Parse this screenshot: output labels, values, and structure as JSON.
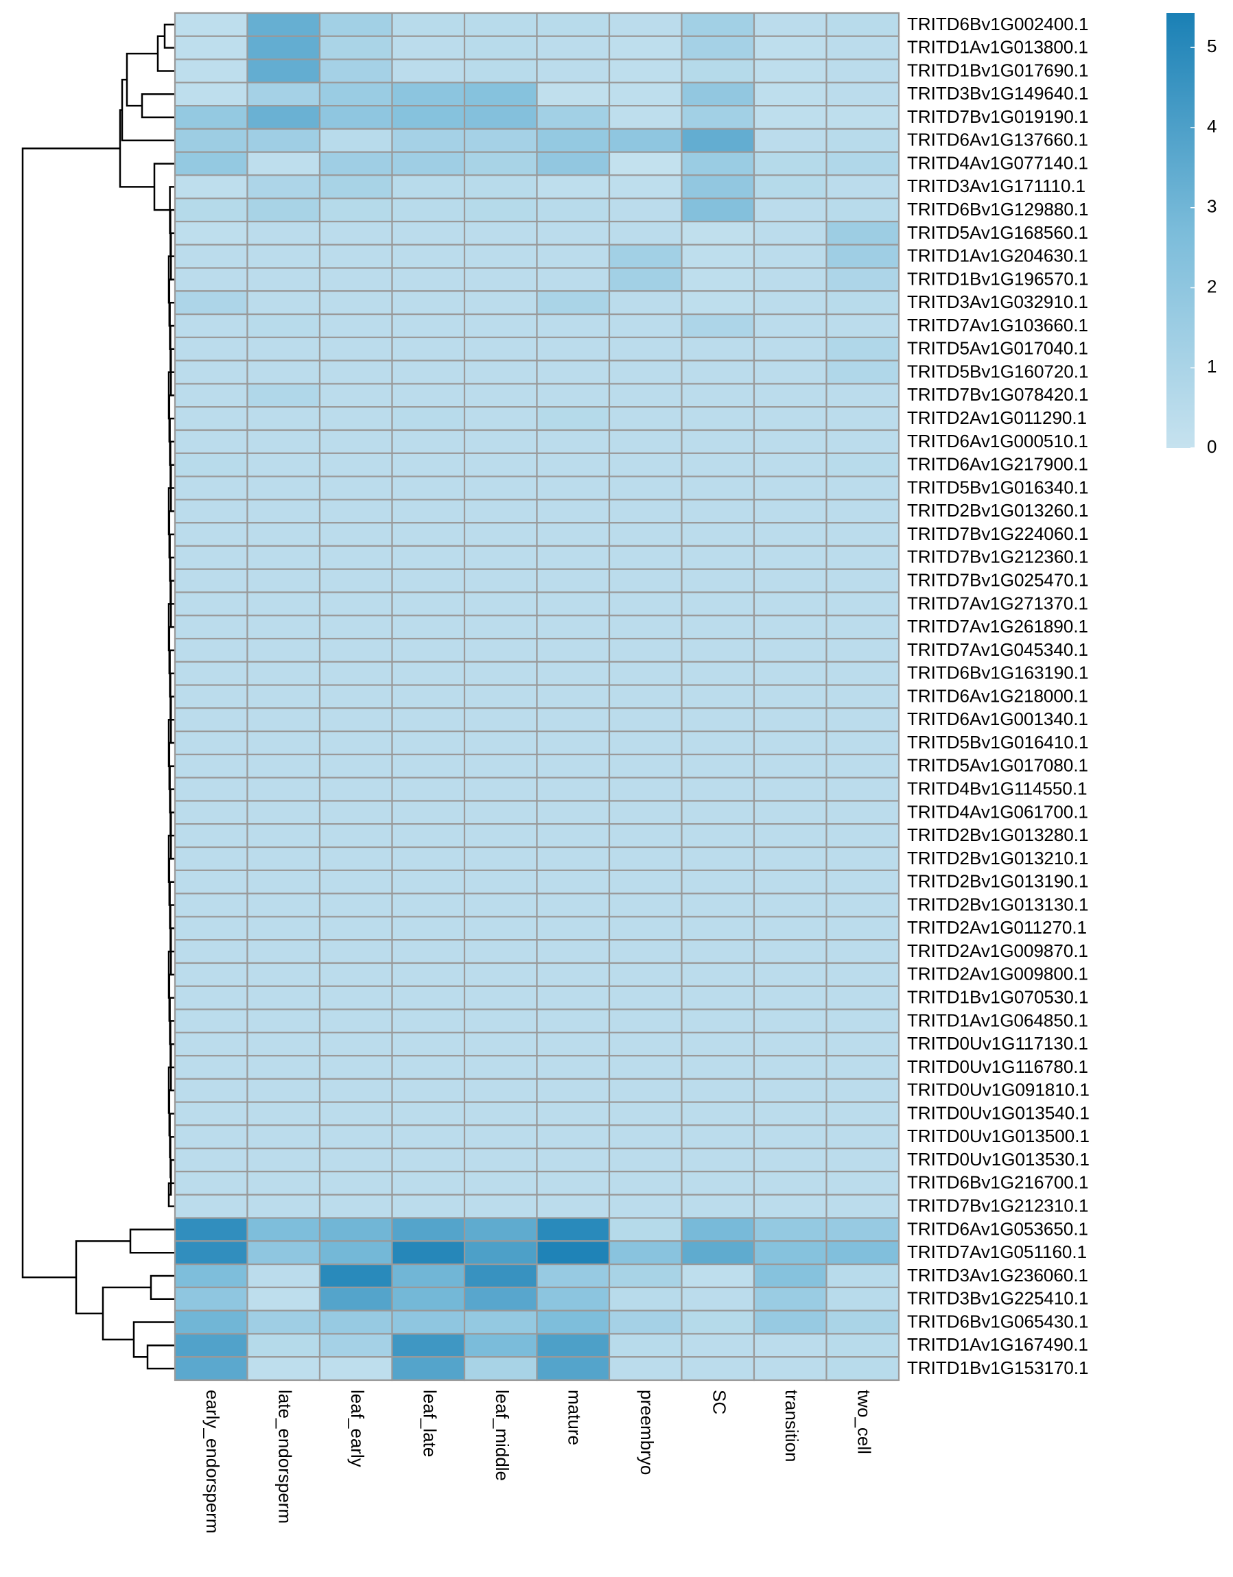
{
  "chart_data": {
    "type": "heatmap",
    "x": [
      "early_endorsperm",
      "late_endorsperm",
      "leaf_early",
      "leaf_late",
      "leaf_middle",
      "mature",
      "preembryo",
      "SC",
      "transition",
      "two_cell"
    ],
    "y": [
      "TRITD6Bv1G002400.1",
      "TRITD1Av1G013800.1",
      "TRITD1Bv1G017690.1",
      "TRITD3Bv1G149640.1",
      "TRITD7Bv1G019190.1",
      "TRITD6Av1G137660.1",
      "TRITD4Av1G077140.1",
      "TRITD3Av1G171110.1",
      "TRITD6Bv1G129880.1",
      "TRITD5Av1G168560.1",
      "TRITD1Av1G204630.1",
      "TRITD1Bv1G196570.1",
      "TRITD3Av1G032910.1",
      "TRITD7Av1G103660.1",
      "TRITD5Av1G017040.1",
      "TRITD5Bv1G160720.1",
      "TRITD7Bv1G078420.1",
      "TRITD2Av1G011290.1",
      "TRITD6Av1G000510.1",
      "TRITD6Av1G217900.1",
      "TRITD5Bv1G016340.1",
      "TRITD2Bv1G013260.1",
      "TRITD7Bv1G224060.1",
      "TRITD7Bv1G212360.1",
      "TRITD7Bv1G025470.1",
      "TRITD7Av1G271370.1",
      "TRITD7Av1G261890.1",
      "TRITD7Av1G045340.1",
      "TRITD6Bv1G163190.1",
      "TRITD6Av1G218000.1",
      "TRITD6Av1G001340.1",
      "TRITD5Bv1G016410.1",
      "TRITD5Av1G017080.1",
      "TRITD4Bv1G114550.1",
      "TRITD4Av1G061700.1",
      "TRITD2Bv1G013280.1",
      "TRITD2Bv1G013210.1",
      "TRITD2Bv1G013190.1",
      "TRITD2Bv1G013130.1",
      "TRITD2Av1G011270.1",
      "TRITD2Av1G009870.1",
      "TRITD2Av1G009800.1",
      "TRITD1Bv1G070530.1",
      "TRITD1Av1G064850.1",
      "TRITD0Uv1G117130.1",
      "TRITD0Uv1G116780.1",
      "TRITD0Uv1G091810.1",
      "TRITD0Uv1G013540.1",
      "TRITD0Uv1G013500.1",
      "TRITD0Uv1G013530.1",
      "TRITD6Bv1G216700.1",
      "TRITD7Bv1G212310.1",
      "TRITD6Av1G053650.1",
      "TRITD7Av1G051160.1",
      "TRITD3Av1G236060.1",
      "TRITD3Bv1G225410.1",
      "TRITD6Bv1G065430.1",
      "TRITD1Av1G167490.1",
      "TRITD1Bv1G153170.1"
    ],
    "values": [
      [
        0.3,
        3.3,
        1.3,
        0.5,
        0.5,
        0.5,
        0.4,
        1.3,
        0.4,
        0.5
      ],
      [
        0.3,
        3.4,
        1.0,
        0.4,
        0.5,
        0.4,
        0.3,
        1.2,
        0.3,
        0.4
      ],
      [
        0.3,
        3.4,
        1.2,
        0.4,
        0.5,
        0.4,
        0.3,
        0.6,
        0.3,
        0.4
      ],
      [
        0.3,
        1.2,
        1.6,
        2.1,
        2.3,
        0.2,
        0.3,
        1.9,
        0.3,
        0.4
      ],
      [
        1.8,
        3.2,
        2.0,
        2.3,
        2.4,
        1.3,
        0.3,
        1.3,
        0.3,
        0.3
      ],
      [
        1.5,
        1.4,
        0.5,
        1.2,
        1.2,
        1.8,
        2.0,
        3.4,
        0.4,
        0.5
      ],
      [
        1.8,
        0.3,
        1.4,
        1.4,
        1.1,
        1.9,
        0.1,
        1.6,
        0.6,
        0.8
      ],
      [
        0.3,
        0.9,
        1.1,
        0.5,
        0.5,
        0.3,
        0.3,
        1.9,
        0.6,
        0.4
      ],
      [
        0.6,
        1.1,
        0.6,
        0.5,
        0.6,
        0.5,
        0.4,
        2.4,
        0.4,
        0.5
      ],
      [
        0.3,
        0.4,
        0.4,
        0.4,
        0.4,
        0.4,
        0.4,
        0.2,
        0.4,
        1.5
      ],
      [
        0.4,
        0.4,
        0.4,
        0.4,
        0.4,
        0.4,
        1.3,
        0.3,
        0.4,
        1.4
      ],
      [
        0.4,
        0.4,
        0.4,
        0.4,
        0.4,
        0.4,
        1.3,
        0.3,
        0.4,
        0.9
      ],
      [
        0.9,
        0.4,
        0.4,
        0.4,
        0.4,
        1.0,
        0.4,
        0.3,
        0.4,
        0.5
      ],
      [
        0.4,
        0.5,
        0.4,
        0.4,
        0.4,
        0.4,
        0.4,
        0.9,
        0.4,
        0.4
      ],
      [
        0.4,
        0.4,
        0.4,
        0.4,
        0.4,
        0.4,
        0.4,
        0.4,
        0.4,
        0.8
      ],
      [
        0.4,
        0.4,
        0.4,
        0.4,
        0.4,
        0.4,
        0.4,
        0.4,
        0.4,
        0.8
      ],
      [
        0.4,
        0.8,
        0.4,
        0.4,
        0.4,
        0.4,
        0.4,
        0.4,
        0.4,
        0.4
      ],
      [
        0.4,
        0.4,
        0.4,
        0.5,
        0.4,
        0.6,
        0.4,
        0.4,
        0.4,
        0.4
      ],
      [
        0.4,
        0.4,
        0.4,
        0.4,
        0.4,
        0.4,
        0.4,
        0.4,
        0.4,
        0.4
      ],
      [
        0.5,
        0.4,
        0.4,
        0.4,
        0.4,
        0.4,
        0.4,
        0.4,
        0.4,
        0.5
      ],
      [
        0.4,
        0.4,
        0.4,
        0.4,
        0.4,
        0.4,
        0.4,
        0.4,
        0.4,
        0.4
      ],
      [
        0.4,
        0.4,
        0.4,
        0.4,
        0.4,
        0.4,
        0.4,
        0.4,
        0.4,
        0.4
      ],
      [
        0.4,
        0.4,
        0.4,
        0.4,
        0.4,
        0.4,
        0.4,
        0.4,
        0.4,
        0.4
      ],
      [
        0.4,
        0.4,
        0.4,
        0.4,
        0.4,
        0.4,
        0.4,
        0.4,
        0.4,
        0.4
      ],
      [
        0.4,
        0.4,
        0.4,
        0.4,
        0.4,
        0.4,
        0.4,
        0.4,
        0.4,
        0.4
      ],
      [
        0.4,
        0.4,
        0.4,
        0.4,
        0.4,
        0.4,
        0.4,
        0.4,
        0.4,
        0.4
      ],
      [
        0.4,
        0.4,
        0.4,
        0.4,
        0.4,
        0.4,
        0.4,
        0.4,
        0.4,
        0.4
      ],
      [
        0.4,
        0.4,
        0.4,
        0.4,
        0.4,
        0.4,
        0.4,
        0.4,
        0.4,
        0.4
      ],
      [
        0.4,
        0.4,
        0.4,
        0.4,
        0.4,
        0.4,
        0.4,
        0.4,
        0.4,
        0.4
      ],
      [
        0.4,
        0.4,
        0.4,
        0.4,
        0.4,
        0.4,
        0.4,
        0.4,
        0.4,
        0.4
      ],
      [
        0.4,
        0.4,
        0.4,
        0.4,
        0.4,
        0.4,
        0.4,
        0.4,
        0.4,
        0.4
      ],
      [
        0.4,
        0.4,
        0.4,
        0.4,
        0.4,
        0.4,
        0.4,
        0.4,
        0.4,
        0.4
      ],
      [
        0.4,
        0.4,
        0.4,
        0.4,
        0.4,
        0.4,
        0.4,
        0.4,
        0.4,
        0.4
      ],
      [
        0.4,
        0.4,
        0.4,
        0.4,
        0.4,
        0.4,
        0.4,
        0.4,
        0.4,
        0.4
      ],
      [
        0.4,
        0.4,
        0.4,
        0.4,
        0.4,
        0.4,
        0.4,
        0.4,
        0.4,
        0.4
      ],
      [
        0.4,
        0.4,
        0.4,
        0.4,
        0.4,
        0.4,
        0.4,
        0.4,
        0.4,
        0.4
      ],
      [
        0.4,
        0.4,
        0.4,
        0.4,
        0.4,
        0.4,
        0.4,
        0.4,
        0.4,
        0.4
      ],
      [
        0.4,
        0.4,
        0.4,
        0.4,
        0.4,
        0.4,
        0.4,
        0.4,
        0.4,
        0.4
      ],
      [
        0.4,
        0.4,
        0.4,
        0.4,
        0.4,
        0.4,
        0.4,
        0.4,
        0.4,
        0.4
      ],
      [
        0.4,
        0.4,
        0.4,
        0.4,
        0.4,
        0.4,
        0.4,
        0.4,
        0.4,
        0.4
      ],
      [
        0.4,
        0.4,
        0.4,
        0.4,
        0.4,
        0.4,
        0.4,
        0.4,
        0.4,
        0.4
      ],
      [
        0.4,
        0.4,
        0.4,
        0.4,
        0.4,
        0.4,
        0.4,
        0.4,
        0.4,
        0.4
      ],
      [
        0.4,
        0.4,
        0.4,
        0.4,
        0.4,
        0.4,
        0.4,
        0.4,
        0.4,
        0.4
      ],
      [
        0.4,
        0.4,
        0.4,
        0.4,
        0.4,
        0.4,
        0.4,
        0.4,
        0.4,
        0.4
      ],
      [
        0.4,
        0.4,
        0.4,
        0.4,
        0.4,
        0.4,
        0.4,
        0.4,
        0.4,
        0.4
      ],
      [
        0.4,
        0.4,
        0.4,
        0.4,
        0.4,
        0.4,
        0.4,
        0.4,
        0.4,
        0.4
      ],
      [
        0.4,
        0.4,
        0.4,
        0.4,
        0.4,
        0.4,
        0.4,
        0.4,
        0.4,
        0.4
      ],
      [
        0.4,
        0.4,
        0.4,
        0.4,
        0.4,
        0.4,
        0.4,
        0.4,
        0.4,
        0.4
      ],
      [
        0.4,
        0.4,
        0.4,
        0.4,
        0.4,
        0.4,
        0.4,
        0.4,
        0.4,
        0.4
      ],
      [
        0.4,
        0.4,
        0.4,
        0.4,
        0.4,
        0.4,
        0.4,
        0.4,
        0.4,
        0.4
      ],
      [
        0.4,
        0.4,
        0.4,
        0.4,
        0.4,
        0.4,
        0.4,
        0.4,
        0.4,
        0.4
      ],
      [
        0.4,
        0.4,
        0.4,
        0.4,
        0.4,
        0.4,
        0.4,
        0.4,
        0.4,
        0.4
      ],
      [
        4.8,
        2.6,
        3.0,
        3.8,
        3.5,
        5.0,
        0.6,
        2.8,
        1.8,
        1.7
      ],
      [
        4.8,
        2.0,
        2.9,
        5.1,
        4.0,
        5.3,
        2.2,
        3.5,
        2.3,
        2.5
      ],
      [
        2.6,
        0.4,
        5.0,
        3.0,
        4.6,
        1.7,
        1.1,
        0.3,
        2.3,
        0.5
      ],
      [
        2.0,
        0.3,
        3.8,
        2.9,
        3.7,
        2.1,
        0.5,
        0.4,
        1.6,
        0.5
      ],
      [
        3.0,
        1.4,
        1.7,
        2.0,
        1.8,
        2.6,
        1.2,
        0.6,
        1.7,
        1.0
      ],
      [
        3.9,
        0.6,
        1.2,
        4.4,
        2.7,
        4.0,
        0.5,
        0.4,
        0.4,
        0.5
      ],
      [
        3.6,
        0.3,
        0.3,
        3.8,
        1.1,
        3.8,
        0.4,
        0.4,
        0.4,
        0.5
      ]
    ],
    "zlim": [
      0,
      5.43
    ],
    "zticks": [
      0,
      1,
      2,
      3,
      4,
      5
    ],
    "colors": [
      "#c6e2ef",
      "#7bbcda",
      "#1a80b5"
    ]
  }
}
